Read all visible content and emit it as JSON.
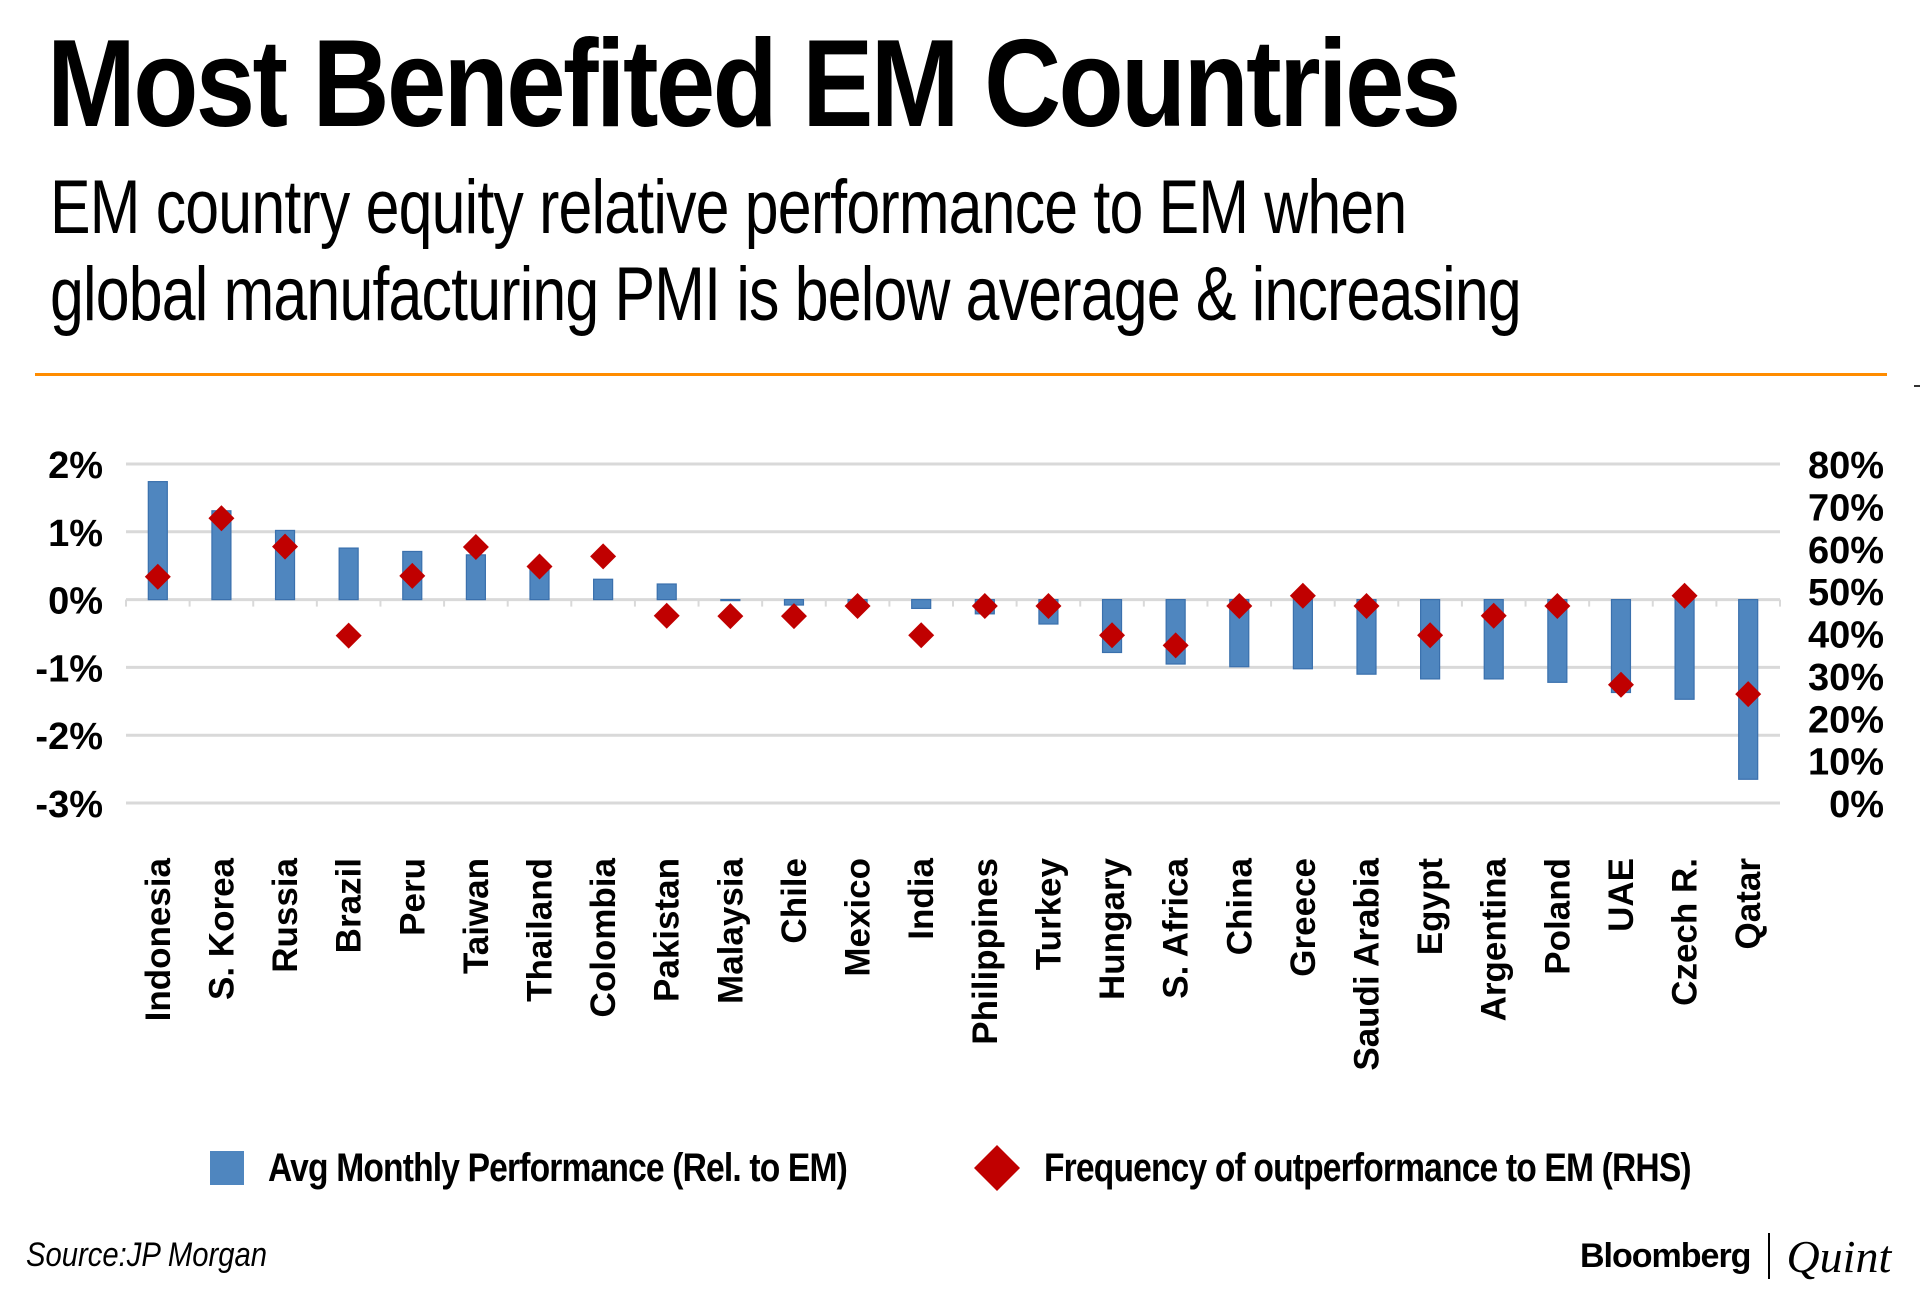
{
  "header": {
    "title": "Most Benefited EM Countries",
    "subtitle_lines": [
      "EM country equity relative performance to EM when",
      "global manufacturing PMI is below average & increasing"
    ]
  },
  "colors": {
    "accent_rule": "#ff8c00",
    "bar": "#4f86bf",
    "bar_edge": "#3a70ad",
    "diamond": "#c00000",
    "gridline": "#d9d9d9"
  },
  "chart_data": {
    "type": "bar",
    "title": "Most Benefited EM Countries",
    "subtitle": "EM country equity relative performance to EM when global manufacturing PMI is below average & increasing",
    "xlabel": "",
    "ylabel": "",
    "ylabel_right": "",
    "grid": true,
    "legend_position": "bottom",
    "categories": [
      "Indonesia",
      "S. Korea",
      "Russia",
      "Brazil",
      "Peru",
      "Taiwan",
      "Thailand",
      "Colombia",
      "Pakistan",
      "Malaysia",
      "Chile",
      "Mexico",
      "India",
      "Philippines",
      "Turkey",
      "Hungary",
      "S. Africa",
      "China",
      "Greece",
      "Saudi Arabia",
      "Egypt",
      "Argentina",
      "Poland",
      "UAE",
      "Czech R.",
      "Qatar"
    ],
    "series": [
      {
        "name": "Avg Monthly Performance (Rel. to EM)",
        "type": "bar",
        "axis": "left",
        "unit": "%",
        "values": [
          1.74,
          1.31,
          1.02,
          0.76,
          0.71,
          0.66,
          0.51,
          0.3,
          0.23,
          0.0,
          -0.08,
          -0.1,
          -0.13,
          -0.21,
          -0.36,
          -0.78,
          -0.95,
          -0.99,
          -1.02,
          -1.1,
          -1.17,
          -1.17,
          -1.22,
          -1.37,
          -1.47,
          -2.65
        ]
      },
      {
        "name": "Frequency of outperformance to EM (RHS)",
        "type": "scatter",
        "marker": "diamond",
        "axis": "right",
        "unit": "%",
        "values": [
          53.4,
          67.2,
          60.5,
          39.5,
          53.6,
          60.4,
          55.8,
          58.2,
          44.2,
          44.1,
          44.1,
          46.5,
          39.6,
          46.5,
          46.5,
          39.6,
          37.2,
          46.5,
          48.9,
          46.5,
          39.6,
          44.2,
          46.5,
          27.9,
          48.9,
          25.7
        ]
      }
    ],
    "ylim": [
      -3,
      2
    ],
    "ylim_right": [
      0,
      80
    ],
    "yticks": [
      2,
      1,
      0,
      -1,
      -2,
      -3
    ],
    "ytick_labels": [
      "2%",
      "1%",
      "0%",
      "-1%",
      "-2%",
      "-3%"
    ],
    "yticks_right": [
      80,
      70,
      60,
      50,
      40,
      30,
      20,
      10,
      0
    ],
    "ytick_labels_right": [
      "80%",
      "70%",
      "60%",
      "50%",
      "40%",
      "30%",
      "20%",
      "10%",
      "0%"
    ]
  },
  "legend": {
    "bar_label": "Avg Monthly Performance (Rel. to EM)",
    "diamond_label": "Frequency of outperformance to EM (RHS)"
  },
  "footer": {
    "source": "Source:JP Morgan",
    "brand_primary": "Bloomberg",
    "brand_secondary": "Quint"
  }
}
